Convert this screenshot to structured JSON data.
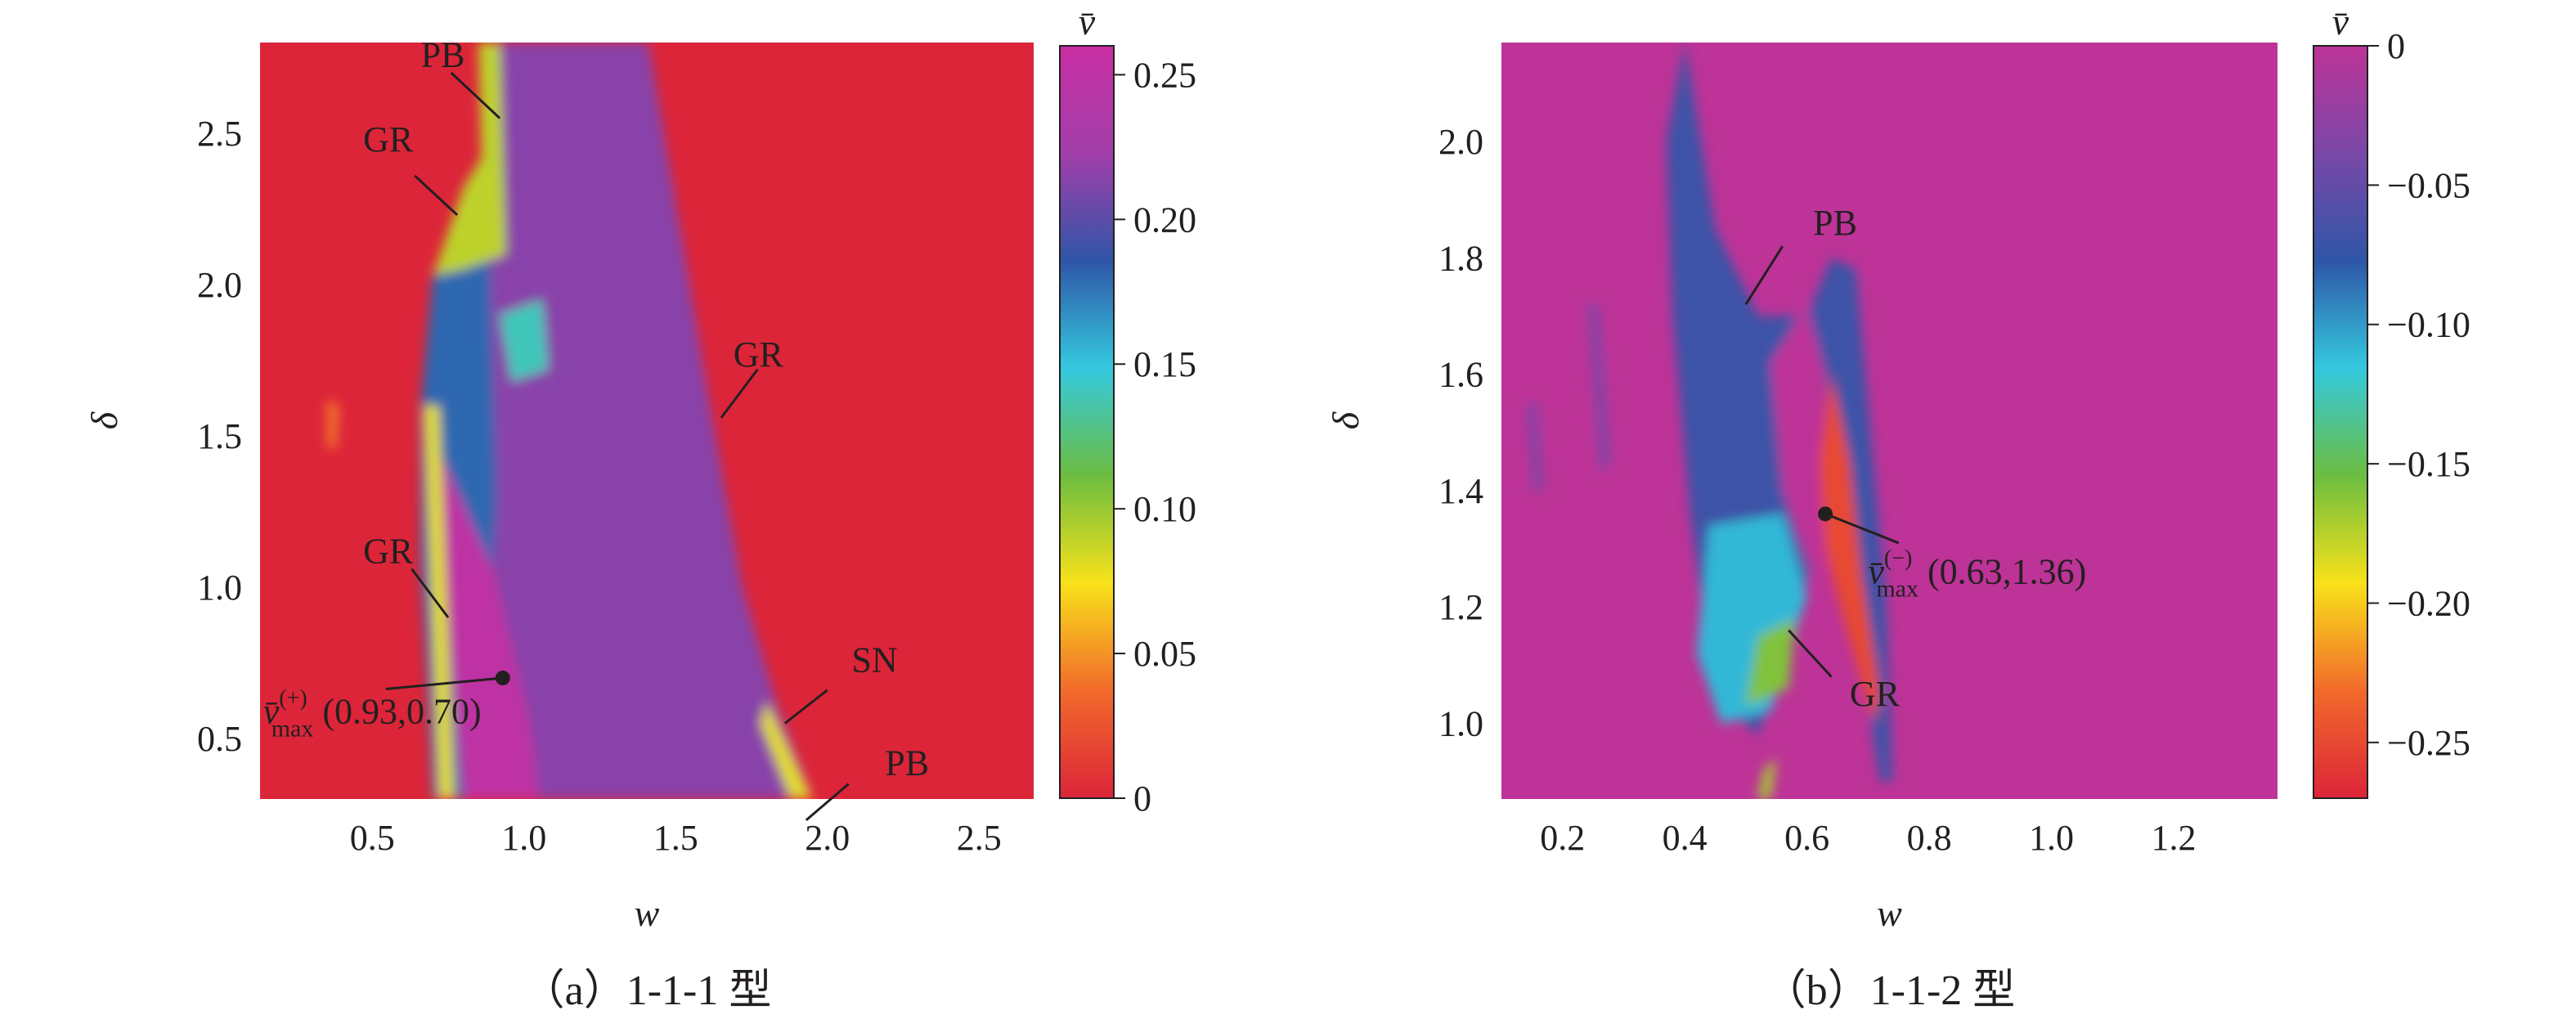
{
  "chart_data": [
    {
      "type": "heatmap",
      "caption": "（a）1-1-1 型",
      "xlabel": "w",
      "ylabel": "δ",
      "xlim": [
        0.13,
        2.68
      ],
      "ylim": [
        0.3,
        2.8
      ],
      "xticks": [
        {
          "value": 0.5,
          "label": "0.5"
        },
        {
          "value": 1.0,
          "label": "1.0"
        },
        {
          "value": 1.5,
          "label": "1.5"
        },
        {
          "value": 2.0,
          "label": "2.0"
        },
        {
          "value": 2.5,
          "label": "2.5"
        }
      ],
      "yticks": [
        {
          "value": 0.5,
          "label": "0.5"
        },
        {
          "value": 1.0,
          "label": "1.0"
        },
        {
          "value": 1.5,
          "label": "1.5"
        },
        {
          "value": 2.0,
          "label": "2.0"
        },
        {
          "value": 2.5,
          "label": "2.5"
        }
      ],
      "background_color": "#dc2539",
      "colorbar": {
        "title": "v̄",
        "range": [
          0,
          0.26
        ],
        "direction": "low-bottom",
        "ticks": [
          {
            "value": 0.25,
            "label": "0.25"
          },
          {
            "value": 0.2,
            "label": "0.20"
          },
          {
            "value": 0.15,
            "label": "0.15"
          },
          {
            "value": 0.1,
            "label": "0.10"
          },
          {
            "value": 0.05,
            "label": "0.05"
          },
          {
            "value": 0,
            "label": "0"
          }
        ],
        "stops": [
          "#dc2539",
          "#f26a2b",
          "#f8e21a",
          "#6cbd40",
          "#34c9df",
          "#2e56a7",
          "#a23eaa",
          "#c82ea2"
        ]
      },
      "regions": [
        {
          "name": "main-band",
          "value": 0.215,
          "polygon": [
            [
              0.89,
              2.8
            ],
            [
              1.41,
              2.8
            ],
            [
              1.63,
              1.5
            ],
            [
              1.72,
              1.0
            ],
            [
              1.83,
              0.62
            ],
            [
              1.95,
              0.3
            ],
            [
              0.83,
              0.3
            ],
            [
              0.86,
              1.3
            ],
            [
              0.88,
              2.3
            ]
          ]
        },
        {
          "name": "left-wedge",
          "value": 0.18,
          "polygon": [
            [
              0.7,
              2.03
            ],
            [
              0.88,
              2.3
            ],
            [
              0.91,
              1.3
            ],
            [
              0.85,
              0.3
            ],
            [
              0.7,
              0.3
            ],
            [
              0.66,
              1.1
            ],
            [
              0.66,
              1.6
            ]
          ]
        },
        {
          "name": "green-pocket",
          "value": 0.09,
          "polygon": [
            [
              0.85,
              2.8
            ],
            [
              0.92,
              2.8
            ],
            [
              0.94,
              2.1
            ],
            [
              0.8,
              2.05
            ],
            [
              0.7,
              2.03
            ],
            [
              0.8,
              2.32
            ],
            [
              0.86,
              2.42
            ]
          ]
        },
        {
          "name": "magenta-core",
          "value": 0.25,
          "polygon": [
            [
              0.72,
              1.45
            ],
            [
              0.9,
              1.05
            ],
            [
              1.02,
              0.55
            ],
            [
              1.05,
              0.3
            ],
            [
              0.8,
              0.3
            ],
            [
              0.74,
              1.0
            ]
          ]
        },
        {
          "name": "light-tip",
          "value": 0.14,
          "polygon": [
            [
              0.92,
              1.9
            ],
            [
              1.06,
              1.95
            ],
            [
              1.08,
              1.72
            ],
            [
              0.96,
              1.68
            ]
          ]
        },
        {
          "name": "bright-tail",
          "value": 0.08,
          "polygon": [
            [
              1.8,
              0.62
            ],
            [
              1.95,
              0.3
            ],
            [
              1.88,
              0.3
            ],
            [
              1.78,
              0.55
            ]
          ]
        },
        {
          "name": "left-edge-strip",
          "value": 0.08,
          "polygon": [
            [
              0.67,
              1.6
            ],
            [
              0.72,
              1.6
            ],
            [
              0.77,
              0.3
            ],
            [
              0.72,
              0.3
            ]
          ]
        },
        {
          "name": "small-spot",
          "value": 0.04,
          "polygon": [
            [
              0.35,
              1.62
            ],
            [
              0.39,
              1.6
            ],
            [
              0.38,
              1.45
            ],
            [
              0.35,
              1.47
            ]
          ]
        }
      ],
      "annotations": [
        {
          "text": "PB",
          "w": 0.66,
          "delta": 2.72,
          "line": [
            [
              0.76,
              2.7
            ],
            [
              0.92,
              2.55
            ]
          ]
        },
        {
          "text": "GR",
          "w": 0.47,
          "delta": 2.44,
          "line": [
            [
              0.64,
              2.36
            ],
            [
              0.78,
              2.23
            ]
          ]
        },
        {
          "text": "GR",
          "w": 1.69,
          "delta": 1.73,
          "line": [
            [
              1.77,
              1.72
            ],
            [
              1.65,
              1.56
            ]
          ]
        },
        {
          "text": "GR",
          "w": 0.47,
          "delta": 1.08,
          "line": [
            [
              0.63,
              1.06
            ],
            [
              0.75,
              0.9
            ]
          ]
        },
        {
          "text": "SN",
          "w": 2.08,
          "delta": 0.72,
          "line": [
            [
              2.0,
              0.66
            ],
            [
              1.86,
              0.55
            ]
          ]
        },
        {
          "text": "PB",
          "w": 2.19,
          "delta": 0.38,
          "line": [
            [
              2.07,
              0.35
            ],
            [
              1.93,
              0.23
            ]
          ]
        }
      ],
      "max_point": {
        "w": 0.93,
        "delta": 0.7,
        "label_main": "v̄",
        "label_sub": "max",
        "label_sup": "(+)",
        "label_rest": " (0.93,0.70)",
        "label_w": 0.14,
        "label_delta": 0.55
      }
    },
    {
      "type": "heatmap",
      "caption": "（b）1-1-2 型",
      "xlabel": "w",
      "ylabel": "δ",
      "xlim": [
        0.1,
        1.37
      ],
      "ylim": [
        0.87,
        2.17
      ],
      "xticks": [
        {
          "value": 0.2,
          "label": "0.2"
        },
        {
          "value": 0.4,
          "label": "0.4"
        },
        {
          "value": 0.6,
          "label": "0.6"
        },
        {
          "value": 0.8,
          "label": "0.8"
        },
        {
          "value": 1.0,
          "label": "1.0"
        },
        {
          "value": 1.2,
          "label": "1.2"
        }
      ],
      "yticks": [
        {
          "value": 1.0,
          "label": "1.0"
        },
        {
          "value": 1.2,
          "label": "1.2"
        },
        {
          "value": 1.4,
          "label": "1.4"
        },
        {
          "value": 1.6,
          "label": "1.6"
        },
        {
          "value": 1.8,
          "label": "1.8"
        },
        {
          "value": 2.0,
          "label": "2.0"
        }
      ],
      "background_color": "#bd3397",
      "colorbar": {
        "title": "v̄",
        "range": [
          -0.27,
          0
        ],
        "direction": "high-top",
        "ticks": [
          {
            "value": 0,
            "label": "0"
          },
          {
            "value": -0.05,
            "label": "−0.05"
          },
          {
            "value": -0.1,
            "label": "−0.10"
          },
          {
            "value": -0.15,
            "label": "−0.15"
          },
          {
            "value": -0.2,
            "label": "−0.20"
          },
          {
            "value": -0.25,
            "label": "−0.25"
          }
        ],
        "stops": [
          "#dc2539",
          "#f26a2b",
          "#f8e21a",
          "#6cbd40",
          "#34c9df",
          "#2e56a7",
          "#7a48a8",
          "#bd3397"
        ]
      },
      "regions": [
        {
          "name": "blue-lobe",
          "value": -0.07,
          "polygon": [
            [
              0.4,
              2.17
            ],
            [
              0.45,
              1.85
            ],
            [
              0.52,
              1.7
            ],
            [
              0.6,
              1.7
            ],
            [
              0.64,
              1.8
            ],
            [
              0.68,
              1.78
            ],
            [
              0.7,
              1.55
            ],
            [
              0.73,
              1.2
            ],
            [
              0.74,
              0.9
            ],
            [
              0.72,
              0.9
            ],
            [
              0.66,
              1.3
            ],
            [
              0.6,
              1.25
            ],
            [
              0.55,
              1.08
            ],
            [
              0.52,
              0.98
            ],
            [
              0.45,
              1.05
            ],
            [
              0.41,
              1.35
            ],
            [
              0.38,
              1.7
            ],
            [
              0.37,
              2.0
            ]
          ]
        },
        {
          "name": "cyan-zone",
          "value": -0.11,
          "polygon": [
            [
              0.44,
              1.34
            ],
            [
              0.56,
              1.36
            ],
            [
              0.6,
              1.22
            ],
            [
              0.54,
              1.02
            ],
            [
              0.46,
              1.0
            ],
            [
              0.42,
              1.12
            ]
          ]
        },
        {
          "name": "green-zone",
          "value": -0.16,
          "polygon": [
            [
              0.5,
              1.03
            ],
            [
              0.57,
              1.06
            ],
            [
              0.58,
              1.18
            ],
            [
              0.52,
              1.15
            ]
          ]
        },
        {
          "name": "inner-gap",
          "value": 0,
          "polygon": [
            [
              0.6,
              1.72
            ],
            [
              0.63,
              1.6
            ],
            [
              0.65,
              1.3
            ],
            [
              0.61,
              1.25
            ],
            [
              0.56,
              1.4
            ],
            [
              0.54,
              1.62
            ]
          ]
        },
        {
          "name": "hot-finger",
          "value": -0.25,
          "polygon": [
            [
              0.64,
              1.6
            ],
            [
              0.67,
              1.45
            ],
            [
              0.69,
              1.25
            ],
            [
              0.72,
              1.05
            ],
            [
              0.71,
              1.0
            ],
            [
              0.66,
              1.18
            ],
            [
              0.63,
              1.3
            ],
            [
              0.62,
              1.45
            ]
          ]
        },
        {
          "name": "red-bottom-strip",
          "value": -0.17,
          "polygon": [
            [
              0.53,
              0.92
            ],
            [
              0.55,
              0.94
            ],
            [
              0.54,
              0.87
            ],
            [
              0.52,
              0.87
            ]
          ]
        },
        {
          "name": "faint-streak-1",
          "value": -0.03,
          "polygon": [
            [
              0.24,
              1.72
            ],
            [
              0.26,
              1.72
            ],
            [
              0.28,
              1.45
            ],
            [
              0.26,
              1.43
            ]
          ]
        },
        {
          "name": "faint-streak-2",
          "value": -0.03,
          "polygon": [
            [
              0.14,
              1.55
            ],
            [
              0.16,
              1.55
            ],
            [
              0.17,
              1.4
            ],
            [
              0.15,
              1.4
            ]
          ]
        }
      ],
      "annotations": [
        {
          "text": "PB",
          "w": 0.61,
          "delta": 1.84,
          "line": [
            [
              0.56,
              1.82
            ],
            [
              0.5,
              1.72
            ]
          ]
        },
        {
          "text": "GR",
          "w": 0.67,
          "delta": 1.03,
          "line": [
            [
              0.64,
              1.08
            ],
            [
              0.57,
              1.16
            ]
          ]
        }
      ],
      "max_point": {
        "w": 0.63,
        "delta": 1.36,
        "label_main": "v̄",
        "label_sub": "max",
        "label_sup": "(−)",
        "label_rest": " (0.63,1.36)",
        "label_w": 0.7,
        "label_delta": 1.24,
        "leader_end": [
          0.75,
          1.31
        ]
      }
    }
  ]
}
